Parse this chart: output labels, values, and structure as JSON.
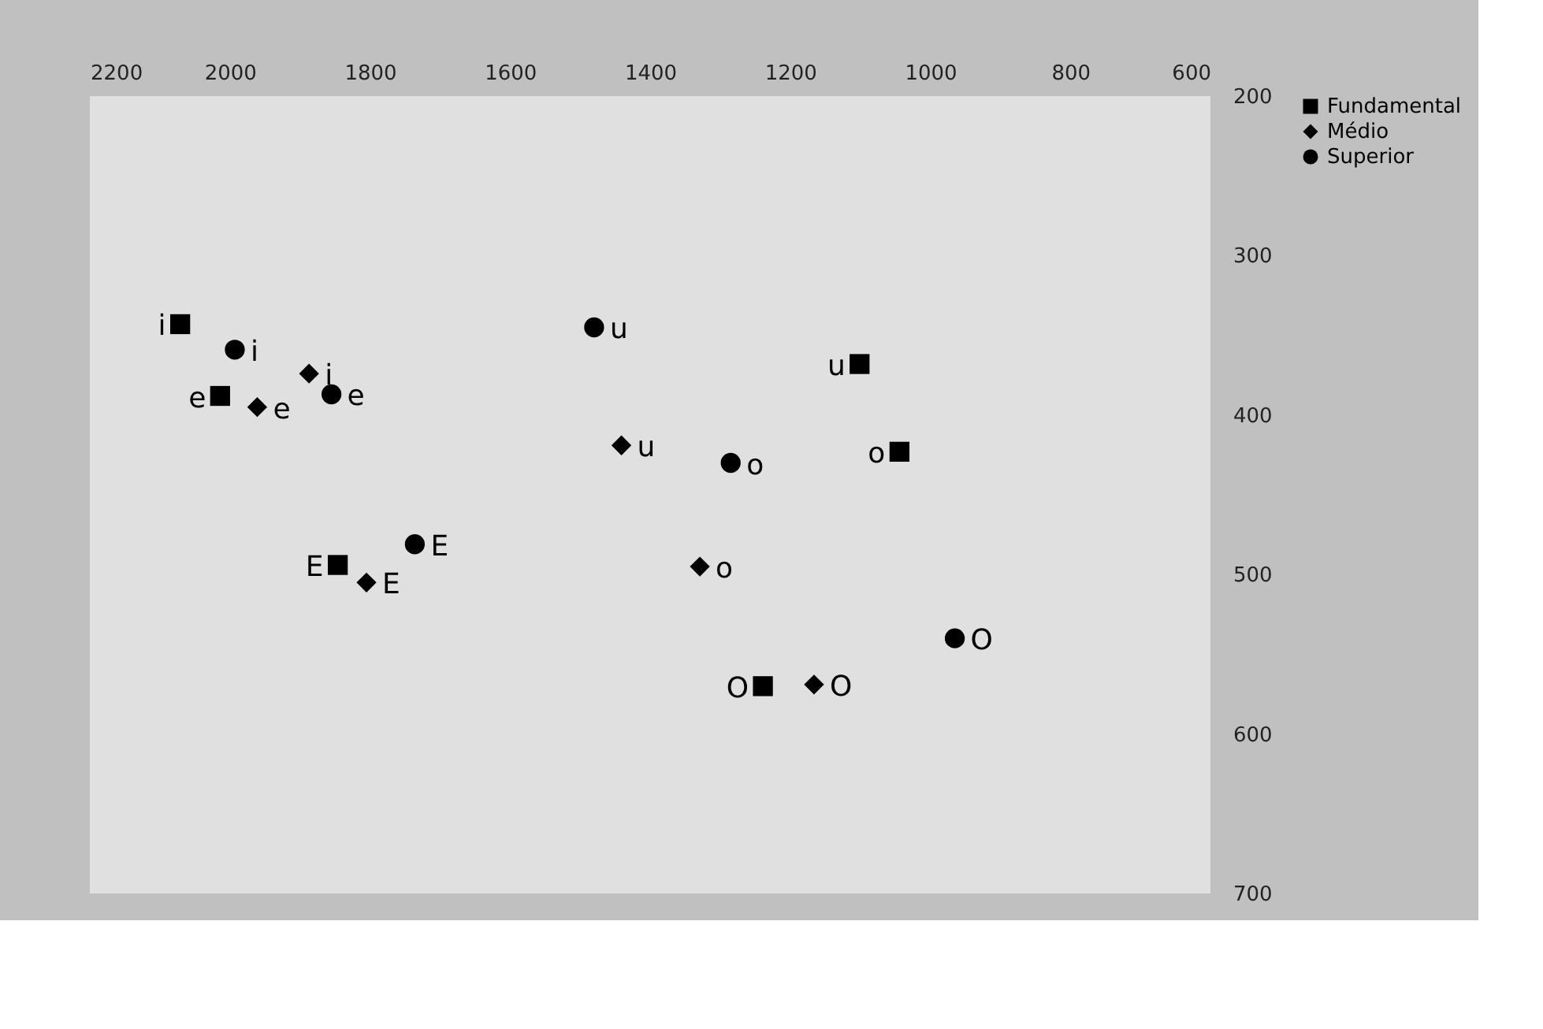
{
  "chart_data": {
    "type": "scatter",
    "xlim": [
      2200,
      600
    ],
    "xticks": [
      2200,
      2000,
      1800,
      1600,
      1400,
      1200,
      1000,
      800,
      600
    ],
    "ylim": [
      700,
      200
    ],
    "yticks": [
      200,
      300,
      400,
      500,
      600,
      700
    ],
    "grid": false,
    "legend": "right",
    "series": [
      {
        "name": "Fundamental",
        "color": "#000000",
        "marker": "square",
        "x": [
          2071,
          2014,
          1846,
          1044,
          1101,
          1239
        ],
        "values": [
          343,
          388,
          494,
          423,
          368,
          570
        ],
        "value_labels": [
          "i",
          "e",
          "E",
          "o",
          "u",
          "O"
        ]
      },
      {
        "name": "Médio",
        "color": "#000000",
        "marker": "diamond",
        "x": [
          1887,
          1961,
          1805,
          1441,
          1329,
          1166
        ],
        "values": [
          374,
          395,
          505,
          419,
          495,
          569
        ],
        "value_labels": [
          "i",
          "e",
          "E",
          "u",
          "o",
          "O"
        ]
      },
      {
        "name": "Superior",
        "color": "#000000",
        "marker": "circle",
        "x": [
          1993,
          1855,
          1736,
          1480,
          1285,
          965
        ],
        "values": [
          359,
          387,
          481,
          345,
          430,
          540
        ],
        "value_labels": [
          "i",
          "e",
          "E",
          "u",
          "o",
          "O"
        ]
      }
    ]
  }
}
